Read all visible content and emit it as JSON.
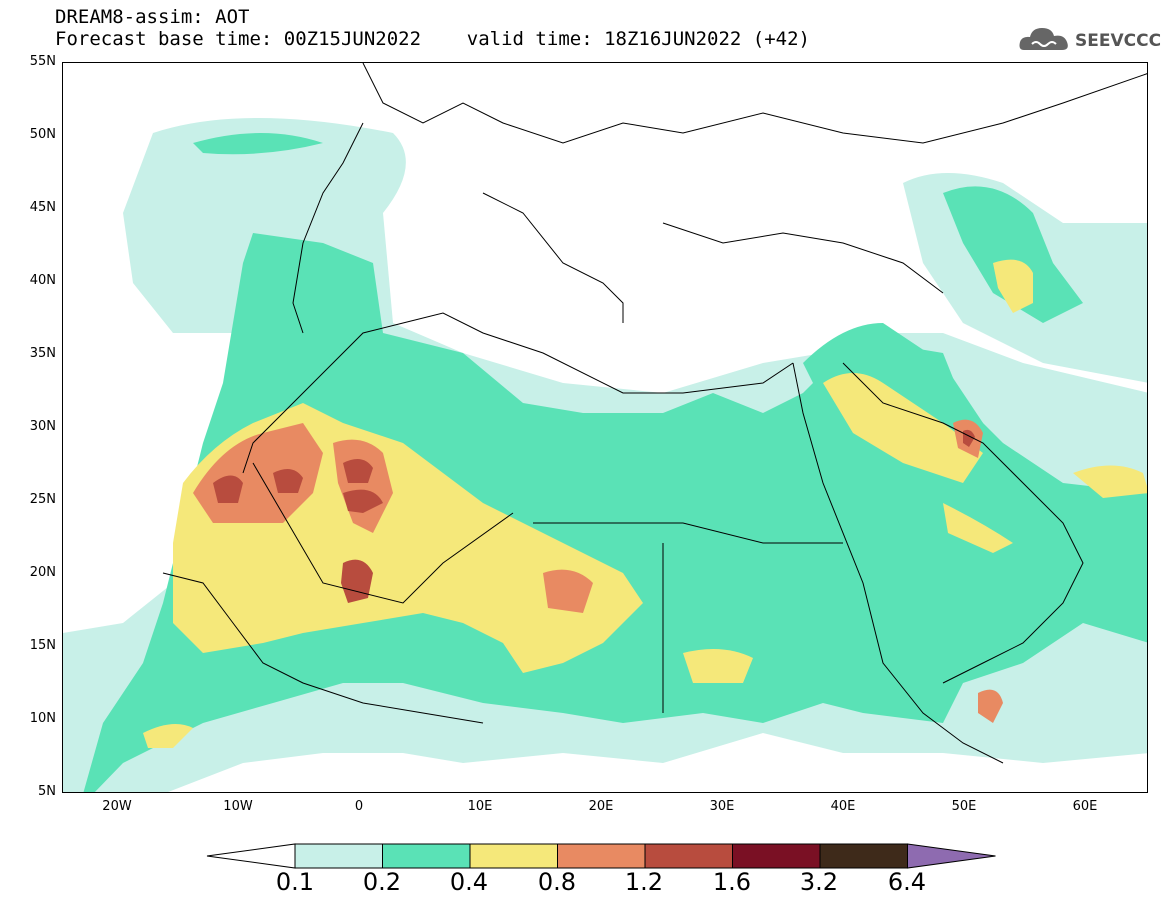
{
  "header": {
    "line1": "DREAM8-assim: AOT",
    "line2": "Forecast base time: 00Z15JUN2022    valid time: 18Z16JUN2022 (+42)"
  },
  "logo": {
    "text": "SEEVCCC",
    "icon": "cloud-icon"
  },
  "map": {
    "lat_labels": [
      "55N",
      "50N",
      "45N",
      "40N",
      "35N",
      "30N",
      "25N",
      "20N",
      "15N",
      "10N",
      "5N"
    ],
    "lon_labels": [
      "20W",
      "10W",
      "0",
      "10E",
      "20E",
      "30E",
      "40E",
      "50E",
      "60E"
    ]
  },
  "colorbar": {
    "labels": [
      "0.1",
      "0.2",
      "0.4",
      "0.8",
      "1.2",
      "1.6",
      "3.2",
      "6.4"
    ],
    "colors": [
      "#c8f0e8",
      "#5ae2b6",
      "#f5e87a",
      "#e88a62",
      "#b84c3e",
      "#7a1024",
      "#3e2a1a",
      "#8e6bb0"
    ]
  }
}
